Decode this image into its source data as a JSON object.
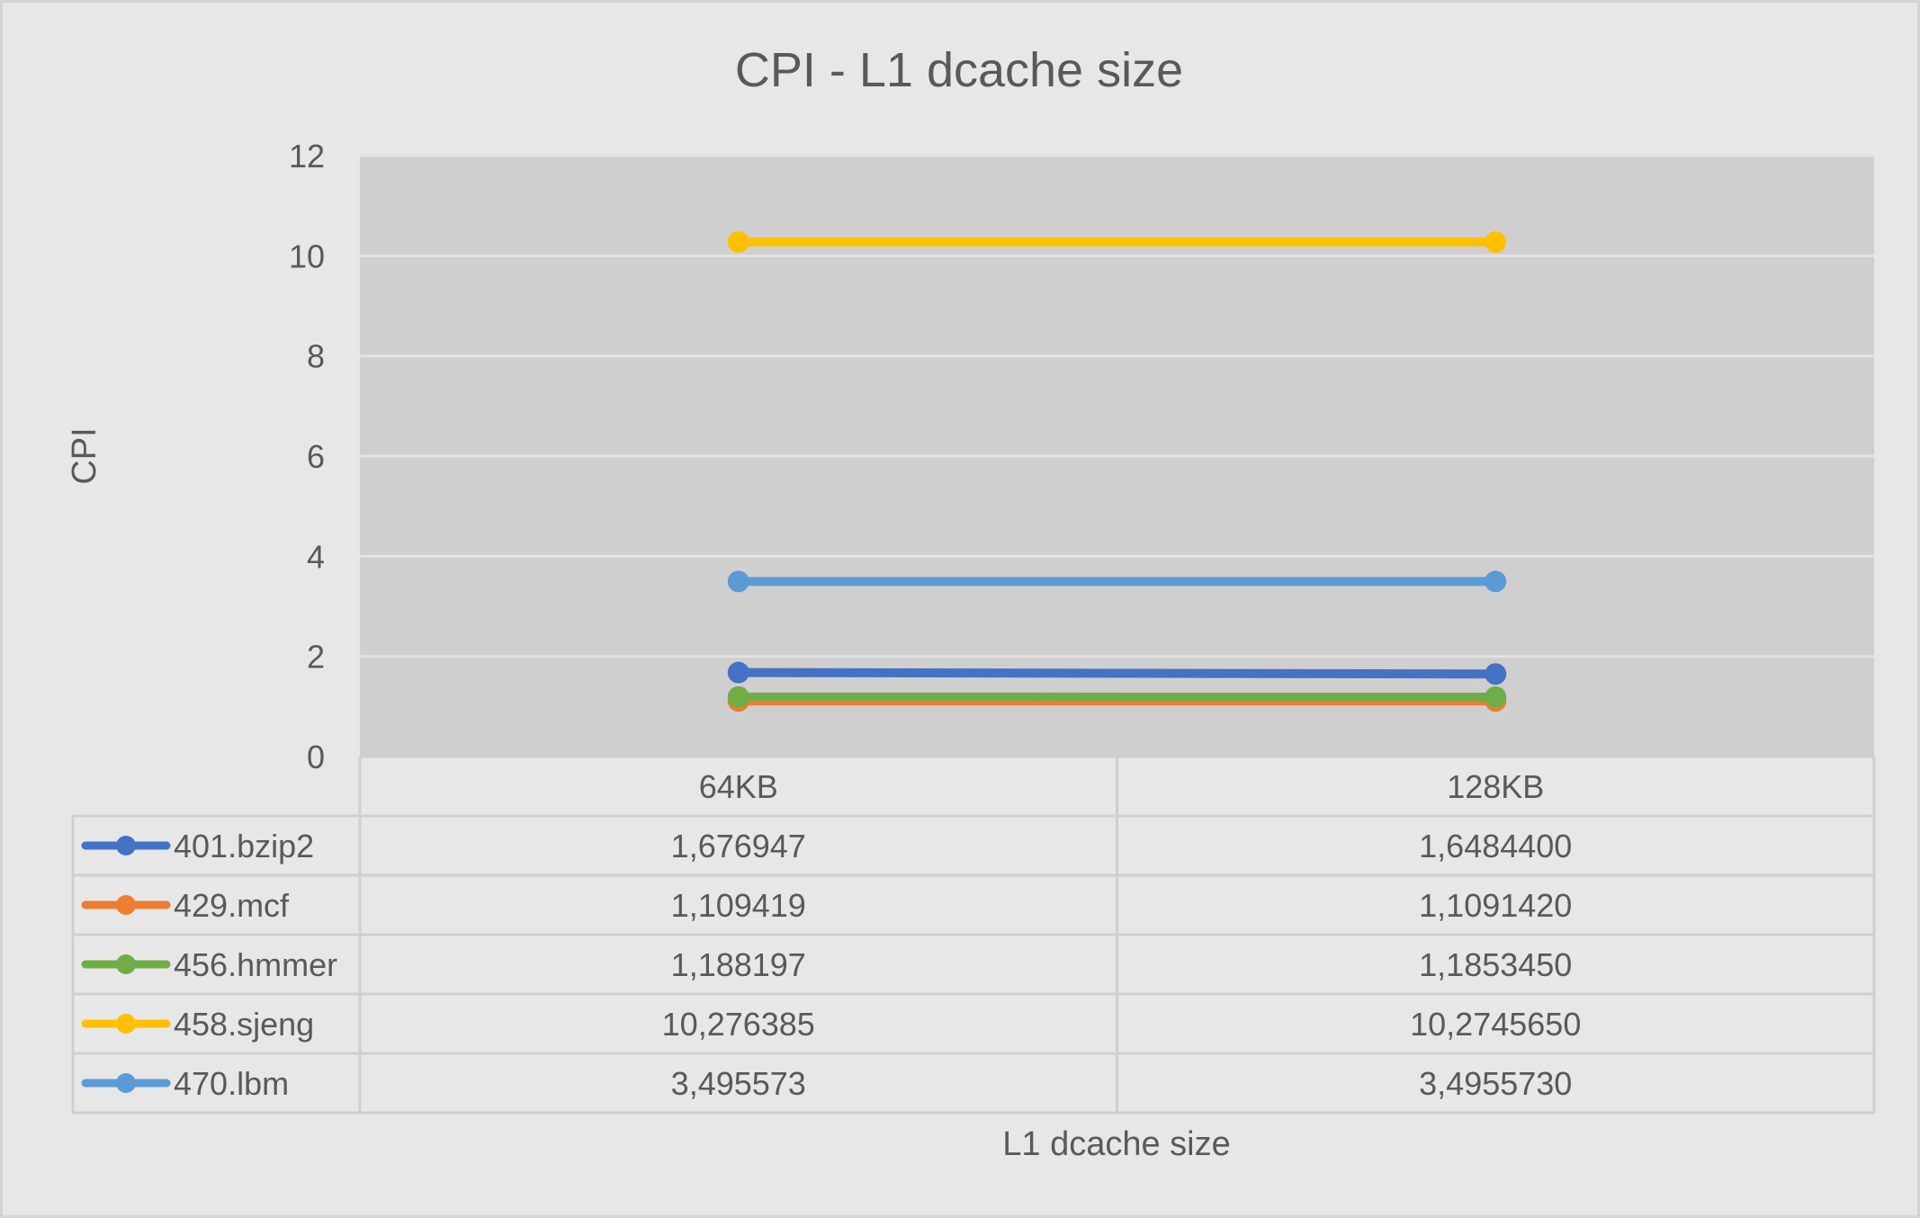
{
  "chart_data": {
    "type": "line",
    "title": "CPI - L1 dcache size",
    "xlabel": "L1 dcache size",
    "ylabel": "CPI",
    "categories": [
      "64KB",
      "128KB"
    ],
    "ylim": [
      0,
      12
    ],
    "yticks": [
      0,
      2,
      4,
      6,
      8,
      10,
      12
    ],
    "grid": true,
    "legend": "data-table",
    "series": [
      {
        "name": "401.bzip2",
        "color": "#4472c4",
        "values": [
          1.676947,
          1.64844
        ],
        "labels": [
          "1,676947",
          "1,6484400"
        ]
      },
      {
        "name": "429.mcf",
        "color": "#ed7d31",
        "values": [
          1.109419,
          1.109142
        ],
        "labels": [
          "1,109419",
          "1,1091420"
        ]
      },
      {
        "name": "456.hmmer",
        "color": "#70ad47",
        "values": [
          1.188197,
          1.185345
        ],
        "labels": [
          "1,188197",
          "1,1853450"
        ]
      },
      {
        "name": "458.sjeng",
        "color": "#ffc000",
        "values": [
          10.276385,
          10.274565
        ],
        "labels": [
          "10,276385",
          "10,2745650"
        ]
      },
      {
        "name": "470.lbm",
        "color": "#5b9bd5",
        "values": [
          3.495573,
          3.495573
        ],
        "labels": [
          "3,495573",
          "3,4955730"
        ]
      }
    ]
  }
}
